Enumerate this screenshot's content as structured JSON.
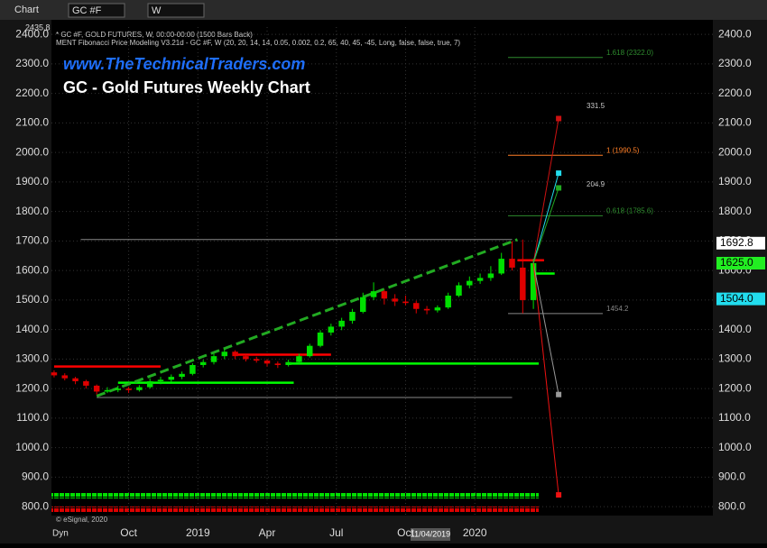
{
  "toolbar": {
    "chart": "Chart",
    "symbol": "GC #F",
    "interval": "W"
  },
  "chart_data": {
    "type": "candlestick",
    "watermark": "www.TheTechnicalTraders.com",
    "title": "GC - Gold Futures Weekly Chart",
    "header_lines": [
      "* GC #F, GOLD FUTURES, W, 00:00-00:00 (1500 Bars Back)",
      "MENT Fibonacci Price Modeling V3.21d - GC #F, W (20, 20, 14, 14, 0.05, 0.002, 0.2, 65, 40, 45, -45, Long, false, false, true, 7)"
    ],
    "top_value": {
      "value": 2435.8,
      "label": "2435.8"
    },
    "credit": "© eSignal, 2020",
    "scale_mode": "Dyn",
    "cursor_date": "11/04/2019",
    "up_color": "#00e000",
    "down_color": "#e00000",
    "xlim": [
      -0.5,
      123.7
    ],
    "ylim": [
      770,
      2425
    ],
    "xticks": [
      {
        "value": 14,
        "label": "Oct"
      },
      {
        "value": 27,
        "label": "2019"
      },
      {
        "value": 40,
        "label": "Apr"
      },
      {
        "value": 53,
        "label": "Jul"
      },
      {
        "value": 66,
        "label": "Oct"
      },
      {
        "value": 79,
        "label": "2020"
      }
    ],
    "yticks": [
      {
        "value": 800,
        "label": "800.0"
      },
      {
        "value": 900,
        "label": "900.0"
      },
      {
        "value": 1000,
        "label": "1000.0"
      },
      {
        "value": 1100,
        "label": "1100.0"
      },
      {
        "value": 1200,
        "label": "1200.0"
      },
      {
        "value": 1300,
        "label": "1300.0"
      },
      {
        "value": 1400,
        "label": "1400.0"
      },
      {
        "value": 1500,
        "label": "1500.0"
      },
      {
        "value": 1600,
        "label": "1600.0"
      },
      {
        "value": 1700,
        "label": "1700.0"
      },
      {
        "value": 1800,
        "label": "1800.0"
      },
      {
        "value": 1900,
        "label": "1900.0"
      },
      {
        "value": 2000,
        "label": "2000.0"
      },
      {
        "value": 2100,
        "label": "2100.0"
      },
      {
        "value": 2200,
        "label": "2200.0"
      },
      {
        "value": 2300,
        "label": "2300.0"
      },
      {
        "value": 2400,
        "label": "2400.0"
      }
    ],
    "grid": true,
    "x": [
      0,
      2,
      4,
      6,
      8,
      10,
      12,
      14,
      16,
      18,
      20,
      22,
      24,
      26,
      28,
      30,
      32,
      34,
      36,
      38,
      40,
      42,
      44,
      46,
      48,
      50,
      52,
      54,
      56,
      58,
      60,
      62,
      64,
      66,
      68,
      70,
      72,
      74,
      76,
      78,
      80,
      82,
      84,
      86,
      88,
      90
    ],
    "ohlc": [
      [
        1255,
        1262,
        1238,
        1245
      ],
      [
        1245,
        1252,
        1228,
        1235
      ],
      [
        1235,
        1240,
        1215,
        1225
      ],
      [
        1225,
        1230,
        1200,
        1210
      ],
      [
        1210,
        1214,
        1180,
        1190
      ],
      [
        1190,
        1205,
        1185,
        1195
      ],
      [
        1195,
        1210,
        1188,
        1200
      ],
      [
        1200,
        1206,
        1185,
        1195
      ],
      [
        1195,
        1212,
        1190,
        1205
      ],
      [
        1205,
        1235,
        1200,
        1225
      ],
      [
        1225,
        1240,
        1215,
        1230
      ],
      [
        1230,
        1248,
        1222,
        1240
      ],
      [
        1240,
        1258,
        1232,
        1250
      ],
      [
        1250,
        1286,
        1245,
        1280
      ],
      [
        1280,
        1298,
        1272,
        1290
      ],
      [
        1290,
        1318,
        1282,
        1310
      ],
      [
        1310,
        1335,
        1300,
        1325
      ],
      [
        1325,
        1330,
        1300,
        1310
      ],
      [
        1310,
        1315,
        1292,
        1300
      ],
      [
        1300,
        1308,
        1288,
        1295
      ],
      [
        1295,
        1300,
        1275,
        1285
      ],
      [
        1285,
        1292,
        1270,
        1280
      ],
      [
        1280,
        1298,
        1275,
        1290
      ],
      [
        1290,
        1318,
        1285,
        1310
      ],
      [
        1310,
        1352,
        1305,
        1345
      ],
      [
        1345,
        1398,
        1340,
        1390
      ],
      [
        1390,
        1420,
        1380,
        1410
      ],
      [
        1410,
        1440,
        1398,
        1430
      ],
      [
        1430,
        1470,
        1420,
        1460
      ],
      [
        1460,
        1525,
        1455,
        1510
      ],
      [
        1510,
        1560,
        1500,
        1530
      ],
      [
        1530,
        1535,
        1485,
        1505
      ],
      [
        1505,
        1520,
        1480,
        1495
      ],
      [
        1495,
        1515,
        1482,
        1490
      ],
      [
        1490,
        1498,
        1455,
        1470
      ],
      [
        1470,
        1480,
        1452,
        1465
      ],
      [
        1465,
        1482,
        1458,
        1475
      ],
      [
        1475,
        1525,
        1470,
        1515
      ],
      [
        1515,
        1560,
        1510,
        1550
      ],
      [
        1550,
        1580,
        1540,
        1565
      ],
      [
        1565,
        1590,
        1555,
        1575
      ],
      [
        1575,
        1615,
        1565,
        1590
      ],
      [
        1590,
        1660,
        1585,
        1640
      ],
      [
        1640,
        1700,
        1600,
        1610
      ],
      [
        1610,
        1705,
        1455,
        1500
      ],
      [
        1500,
        1640,
        1470,
        1625
      ]
    ],
    "trendline": {
      "x": [
        8,
        87
      ],
      "values": [
        1175,
        1705
      ],
      "color": "#22aa22"
    },
    "levels": [
      {
        "value": 1275,
        "x": [
          0,
          20
        ],
        "color": "#ff0000"
      },
      {
        "value": 1315,
        "x": [
          34,
          52
        ],
        "color": "#ff0000"
      },
      {
        "value": 1220,
        "x": [
          12,
          45
        ],
        "color": "#00ff00"
      },
      {
        "value": 1285,
        "x": [
          44,
          91
        ],
        "color": "#00ff00"
      },
      {
        "value": 1705,
        "x": [
          5,
          86
        ],
        "color": "#888888"
      },
      {
        "value": 1170,
        "x": [
          8,
          86
        ],
        "color": "#888888"
      },
      {
        "value": 1635,
        "x": [
          87,
          92
        ],
        "color": "#ff0000"
      },
      {
        "value": 1590,
        "x": [
          90,
          94
        ],
        "color": "#00ff00"
      }
    ],
    "fib_levels": [
      {
        "value": 2322,
        "label": "1.618 (2322.0)",
        "color": "#2e8b2e"
      },
      {
        "value": 1990.5,
        "label": "1 (1990.5)",
        "color": "#ff7f27"
      },
      {
        "value": 1785.6,
        "label": "0.618 (1785.6)",
        "color": "#2e8b2e"
      },
      {
        "value": 1454.2,
        "label": "1454.2",
        "color": "#888888"
      }
    ],
    "annotations": [
      "331.5",
      "204.9"
    ],
    "projections": [
      {
        "value": 2115,
        "color": "#cc1111"
      },
      {
        "value": 1930,
        "color": "#22ddee"
      },
      {
        "value": 1880,
        "color": "#22aa22"
      },
      {
        "value": 1180,
        "color": "#999999"
      },
      {
        "value": 840,
        "color": "#ee1111"
      }
    ],
    "price_tags": [
      {
        "value": 1692.8,
        "label": "1692.8",
        "color": "#ffffff"
      },
      {
        "value": 1625,
        "label": "1625.0",
        "color": "#22ee22"
      },
      {
        "value": 1504,
        "label": "1504.0",
        "color": "#22ddee"
      }
    ]
  }
}
